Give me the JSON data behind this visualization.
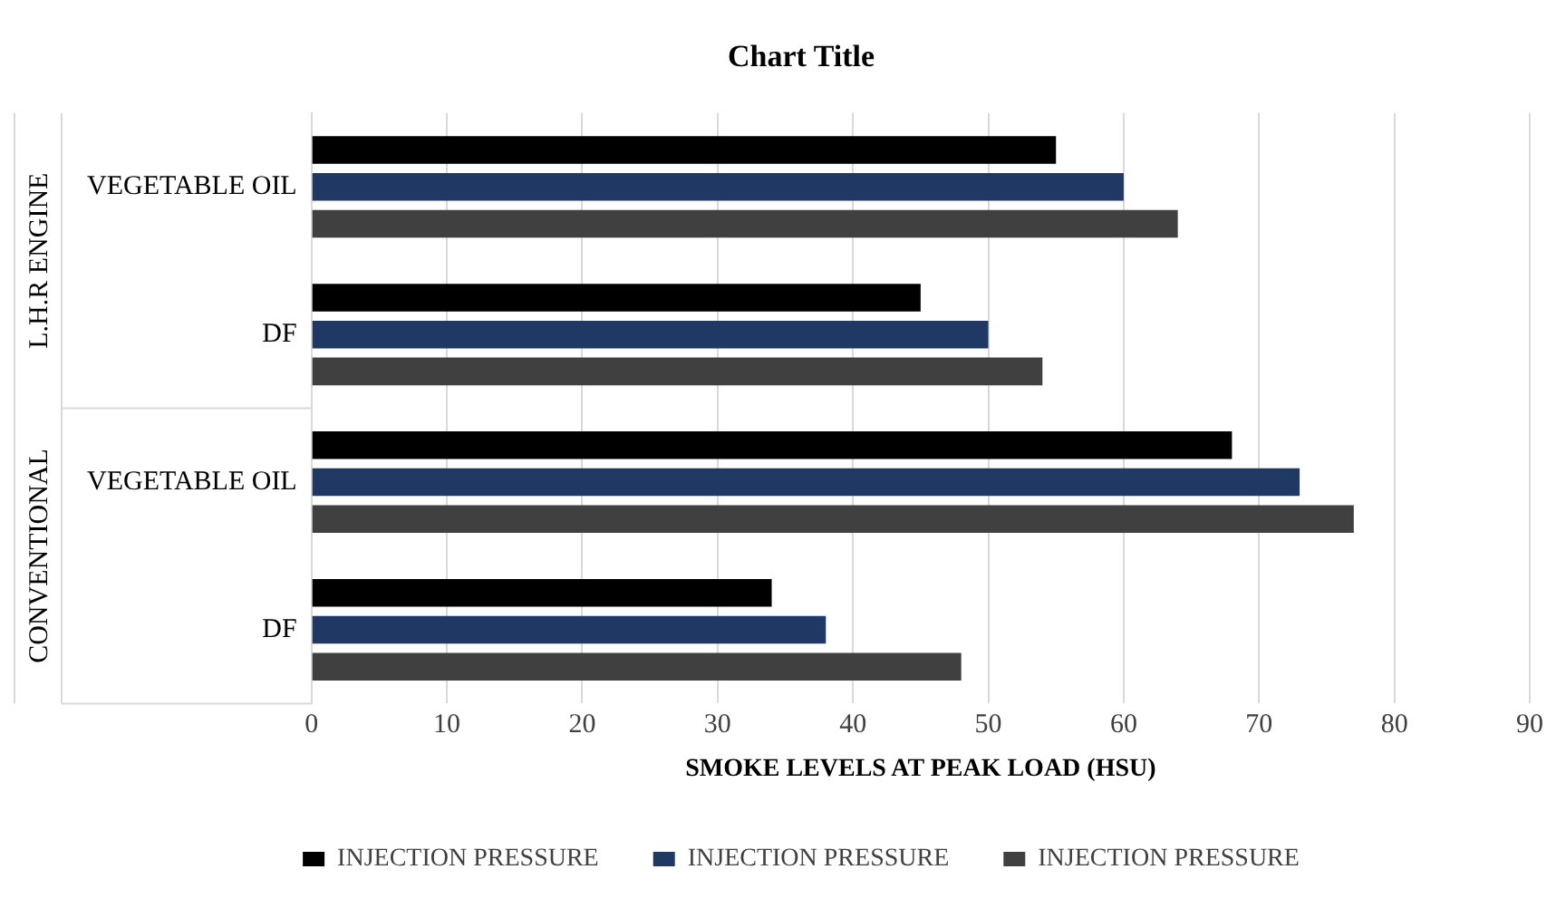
{
  "chart_data": {
    "type": "bar",
    "orientation": "horizontal",
    "title": "Chart Title",
    "xlabel": "SMOKE LEVELS AT PEAK LOAD (HSU)",
    "categories": [
      "VEGETABLE OIL",
      "DF",
      "VEGETABLE OIL",
      "DF"
    ],
    "annotations": [
      "L.H.R ENGINE",
      "CONVENTIONAL"
    ],
    "series": [
      {
        "name": "INJECTION PRESSURE",
        "color": "#000000",
        "values": [
          55,
          45,
          68,
          34
        ]
      },
      {
        "name": "INJECTION PRESSURE",
        "color": "#1f3864",
        "values": [
          60,
          50,
          73,
          38
        ]
      },
      {
        "name": "INJECTION PRESSURE",
        "color": "#404040",
        "values": [
          64,
          54,
          77,
          48
        ]
      }
    ],
    "xlim": [
      0,
      90
    ],
    "xticks": [
      0,
      10,
      20,
      30,
      40,
      50,
      60,
      70,
      80,
      90
    ],
    "grid": "x",
    "legend": "bottom"
  }
}
